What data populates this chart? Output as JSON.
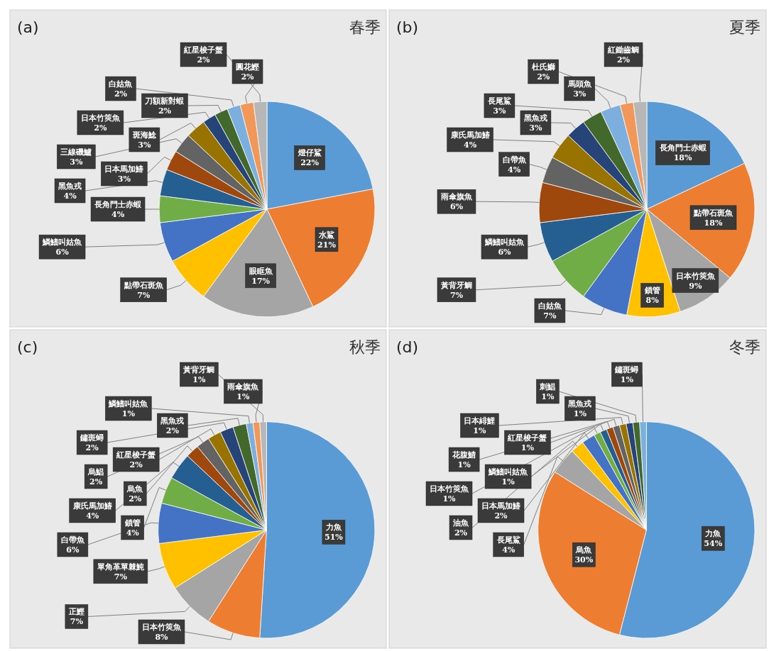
{
  "chart_data": [
    {
      "type": "pie",
      "title": "春季",
      "annotations": [
        "(a)"
      ],
      "categories": [
        "燈仔鯊",
        "水鯊",
        "眼眶魚",
        "點帶石斑魚",
        "鱗鰭叫姑魚",
        "長角門士赤蝦",
        "黑魚戎",
        "日本馬加鰆",
        "三線磯鱸",
        "斑海鯰",
        "日本竹筴魚",
        "刀額新對蝦",
        "白姑魚",
        "圓花鰹",
        "紅星梭子蟹"
      ],
      "values": [
        22,
        21,
        17,
        7,
        6,
        4,
        4,
        3,
        3,
        3,
        2,
        2,
        2,
        2,
        2
      ],
      "value_labels": [
        "22%",
        "21%",
        "17%",
        "7%",
        "6%",
        "4%",
        "4%",
        "3%",
        "3%",
        "3%",
        "2%",
        "2%",
        "2%",
        "2%",
        "2%"
      ],
      "colors": [
        "#5b9bd5",
        "#ed7d31",
        "#a5a5a5",
        "#ffc000",
        "#4472c4",
        "#70ad47",
        "#255e91",
        "#9e480e",
        "#636363",
        "#997300",
        "#264478",
        "#43682b",
        "#7cafdd",
        "#f1975a",
        "#b7b7b7"
      ]
    },
    {
      "type": "pie",
      "title": "夏季",
      "annotations": [
        "(b)"
      ],
      "categories": [
        "長角門士赤蝦",
        "點帶石斑魚",
        "日本竹筴魚",
        "鎖管",
        "白姑魚",
        "黃背牙鯛",
        "鱗鰭叫姑魚",
        "雨傘旗魚",
        "白帶魚",
        "康氏馬加鰆",
        "黑魚戎",
        "長尾鯊",
        "馬頭魚",
        "杜氏鰤",
        "紅鋤齒鯛"
      ],
      "values": [
        18,
        18,
        9,
        8,
        7,
        7,
        6,
        6,
        4,
        4,
        3,
        3,
        3,
        2,
        2
      ],
      "value_labels": [
        "18%",
        "18%",
        "9%",
        "8%",
        "7%",
        "7%",
        "6%",
        "6%",
        "4%",
        "4%",
        "3%",
        "3%",
        "3%",
        "2%",
        "2%"
      ],
      "colors": [
        "#5b9bd5",
        "#ed7d31",
        "#a5a5a5",
        "#ffc000",
        "#4472c4",
        "#70ad47",
        "#255e91",
        "#9e480e",
        "#636363",
        "#997300",
        "#264478",
        "#43682b",
        "#7cafdd",
        "#f1975a",
        "#b7b7b7"
      ]
    },
    {
      "type": "pie",
      "title": "秋季",
      "annotations": [
        "(c)"
      ],
      "categories": [
        "力魚",
        "日本竹筴魚",
        "正鰹",
        "單角革單棘魨",
        "白帶魚",
        "鎖管",
        "康氏馬加鰆",
        "烏魚",
        "烏鯧",
        "紅星梭子蟹",
        "鏽斑蟳",
        "黑魚戎",
        "鱗鰭叫姑魚",
        "雨傘旗魚",
        "黃背牙鯛"
      ],
      "values": [
        51,
        8,
        7,
        7,
        6,
        4,
        4,
        2,
        2,
        2,
        2,
        2,
        1,
        1,
        1
      ],
      "value_labels": [
        "51%",
        "8%",
        "7%",
        "7%",
        "6%",
        "4%",
        "4%",
        "2%",
        "2%",
        "2%",
        "2%",
        "2%",
        "1%",
        "1%",
        "1%"
      ],
      "colors": [
        "#5b9bd5",
        "#ed7d31",
        "#a5a5a5",
        "#ffc000",
        "#4472c4",
        "#70ad47",
        "#255e91",
        "#9e480e",
        "#636363",
        "#997300",
        "#264478",
        "#43682b",
        "#7cafdd",
        "#f1975a",
        "#b7b7b7"
      ]
    },
    {
      "type": "pie",
      "title": "冬季",
      "annotations": [
        "(d)"
      ],
      "categories": [
        "力魚",
        "烏魚",
        "長尾鯊",
        "油魚",
        "日本馬加鰆",
        "日本竹筴魚",
        "鱗鰭叫姑魚",
        "花腹鯖",
        "紅星梭子蟹",
        "日本緋鯉",
        "黑魚戎",
        "刺鯧",
        "鏽斑蟳"
      ],
      "values": [
        54,
        30,
        4,
        2,
        2,
        1,
        1,
        1,
        1,
        1,
        1,
        1,
        1
      ],
      "value_labels": [
        "54%",
        "30%",
        "4%",
        "2%",
        "2%",
        "1%",
        "1%",
        "1%",
        "1%",
        "1%",
        "1%",
        "1%",
        "1%"
      ],
      "colors": [
        "#5b9bd5",
        "#ed7d31",
        "#a5a5a5",
        "#ffc000",
        "#4472c4",
        "#70ad47",
        "#255e91",
        "#9e480e",
        "#636363",
        "#997300",
        "#264478",
        "#43682b",
        "#7cafdd"
      ]
    }
  ]
}
